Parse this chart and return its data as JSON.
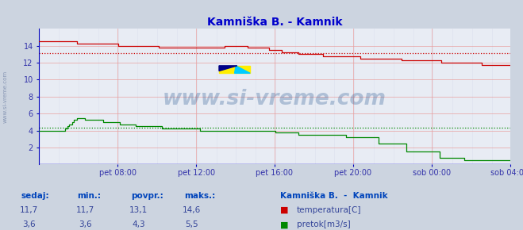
{
  "title": "Kamniška B. - Kamnik",
  "title_color": "#0000cc",
  "bg_color": "#ccd4e0",
  "plot_bg_color": "#e8ecf4",
  "axis_color": "#0000bb",
  "watermark_text": "www.si-vreme.com",
  "watermark_color": "#1a4d8a",
  "watermark_alpha": 0.28,
  "tick_color": "#3333aa",
  "temp_color": "#cc0000",
  "flow_color": "#008800",
  "avg_temp_color": "#cc0000",
  "avg_flow_color": "#008800",
  "grid_h_color": "#e8a0a0",
  "grid_v_color": "#e8a0a0",
  "grid_minor_color": "#dde0ee",
  "ylim": [
    0,
    16
  ],
  "ytick_vals": [
    2,
    4,
    6,
    8,
    10,
    12,
    14
  ],
  "x_tick_labels": [
    "pet 08:00",
    "pet 12:00",
    "pet 16:00",
    "pet 20:00",
    "sob 00:00",
    "sob 04:00"
  ],
  "x_tick_positions_frac": [
    0.1667,
    0.3333,
    0.5,
    0.6667,
    0.8333,
    1.0
  ],
  "total_points": 288,
  "avg_temp": 13.1,
  "avg_flow": 4.3,
  "sedaj_temp": "11,7",
  "min_temp": "11,7",
  "maks_temp": "14,6",
  "povpr_temp": "13,1",
  "sedaj_flow": "3,6",
  "min_flow": "3,6",
  "maks_flow": "5,5",
  "povpr_flow": "4,3",
  "bottom_label_color": "#0044bb",
  "bottom_value_color": "#334499",
  "legend_title": "Kamniška B.  -  Kamnik",
  "left_text": "www.si-vreme.com",
  "left_text_color": "#7788aa"
}
